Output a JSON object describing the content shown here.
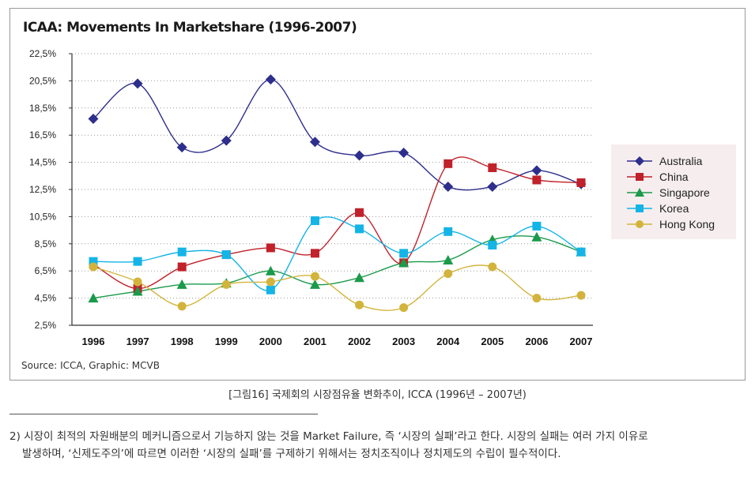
{
  "title": "ICAA: Movements In Marketshare (1996-2007)",
  "source": "Source: ICCA, Graphic: MCVB",
  "caption": "[그림16] 국제회의 시장점유율 변화추이, ICCA (1996년 – 2007년)",
  "footnote": {
    "line1": "2) 시장이 최적의 자원배분의 메커니즘으로서 기능하지 않는 것을 Market Failure, 즉 ‘시장의 실패’라고 한다. 시장의 실패는 여러 가지 이유로",
    "line2": "발생하며, ‘신제도주의’에 따르면 이러한 ‘시장의 실패’를 구제하기 위해서는 정치조직이나 정치제도의 수립이 필수적이다."
  },
  "chart_data": {
    "type": "line",
    "title": "ICAA: Movements In Marketshare (1996-2007)",
    "x": [
      "1996",
      "1997",
      "1998",
      "1999",
      "2000",
      "2001",
      "2002",
      "2003",
      "2004",
      "2005",
      "2006",
      "2007"
    ],
    "ylim": [
      2.5,
      22.5
    ],
    "yticks": [
      2.5,
      4.5,
      6.5,
      8.5,
      10.5,
      12.5,
      14.5,
      16.5,
      18.5,
      20.5,
      22.5
    ],
    "ytick_labels": [
      "2,5%",
      "4,5%",
      "6,5%",
      "8,5%",
      "10,5%",
      "12,5%",
      "14,5%",
      "16,5%",
      "18,5%",
      "20,5%",
      "22,5%"
    ],
    "grid": "horizontal dotted",
    "legend_position": "right",
    "series": [
      {
        "name": "Australia",
        "color": "#2e2e8c",
        "marker": "diamond",
        "values": [
          17.7,
          20.3,
          15.6,
          16.1,
          20.6,
          16.0,
          15.0,
          15.2,
          12.7,
          12.7,
          13.9,
          12.9
        ]
      },
      {
        "name": "China",
        "color": "#c0212a",
        "marker": "square",
        "values": [
          7.0,
          5.2,
          6.8,
          7.7,
          8.2,
          7.8,
          10.8,
          7.1,
          14.4,
          14.1,
          13.2,
          13.0
        ]
      },
      {
        "name": "Singapore",
        "color": "#1a9a4a",
        "marker": "triangle",
        "values": [
          4.5,
          5.0,
          5.5,
          5.6,
          6.5,
          5.5,
          6.0,
          7.1,
          7.3,
          8.8,
          9.0,
          7.9
        ]
      },
      {
        "name": "Korea",
        "color": "#14b4e6",
        "marker": "square",
        "values": [
          7.2,
          7.2,
          7.9,
          7.7,
          5.1,
          10.2,
          9.6,
          7.8,
          9.4,
          8.4,
          9.8,
          7.9
        ]
      },
      {
        "name": "Hong Kong",
        "color": "#d2b43c",
        "marker": "circle",
        "values": [
          6.8,
          5.7,
          3.9,
          5.5,
          5.7,
          6.1,
          4.0,
          3.8,
          6.3,
          6.8,
          4.5,
          4.7
        ]
      }
    ]
  }
}
